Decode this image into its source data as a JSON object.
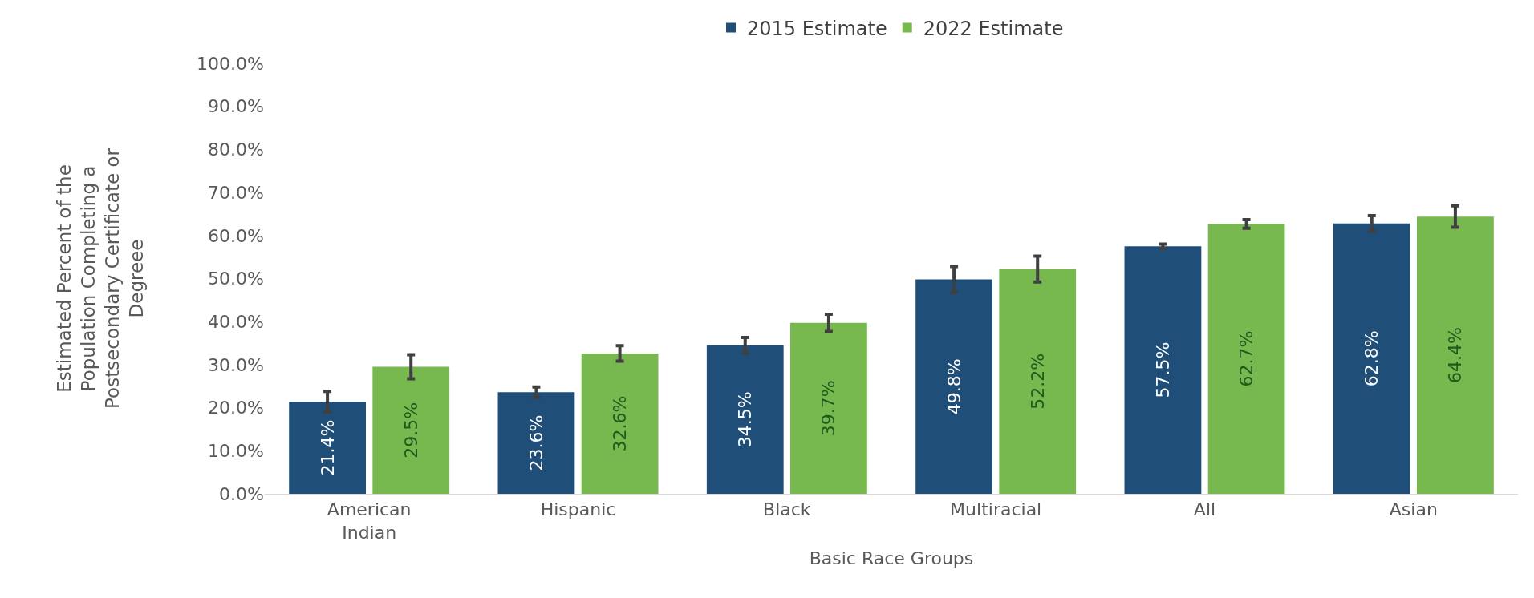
{
  "chart_data": {
    "type": "bar",
    "xlabel": "Basic Race Groups",
    "ylabel": "Estimated Percent of the Population Completing a Postsecondary Certificate or Degreee",
    "categories": [
      "American Indian",
      "Hispanic",
      "Black",
      "Multiracial",
      "All",
      "Asian"
    ],
    "series": [
      {
        "name": "2015 Estimate",
        "color": "#1f4e79",
        "values": [
          21.4,
          23.6,
          34.5,
          49.8,
          57.5,
          62.8
        ],
        "value_labels": [
          "21.4%",
          "23.6%",
          "34.5%",
          "49.8%",
          "57.5%",
          "62.8%"
        ],
        "errors": [
          2.4,
          1.2,
          1.8,
          3.0,
          0.5,
          1.8
        ]
      },
      {
        "name": "2022 Estimate",
        "color": "#77b84f",
        "values": [
          29.5,
          32.6,
          39.7,
          52.2,
          62.7,
          64.4
        ],
        "value_labels": [
          "29.5%",
          "32.6%",
          "39.7%",
          "52.2%",
          "62.7%",
          "64.4%"
        ],
        "errors": [
          2.8,
          1.8,
          2.0,
          3.0,
          1.0,
          2.5
        ]
      }
    ],
    "ylim": [
      0,
      100
    ],
    "yticks": [
      {
        "value": 0,
        "label": "0.0%"
      },
      {
        "value": 10,
        "label": "10.0%"
      },
      {
        "value": 20,
        "label": "20.0%"
      },
      {
        "value": 30,
        "label": "30.0%"
      },
      {
        "value": 40,
        "label": "40.0%"
      },
      {
        "value": 50,
        "label": "50.0%"
      },
      {
        "value": 60,
        "label": "60.0%"
      },
      {
        "value": 70,
        "label": "70.0%"
      },
      {
        "value": 80,
        "label": "80.0%"
      },
      {
        "value": 90,
        "label": "90.0%"
      },
      {
        "value": 100,
        "label": "100.0%"
      }
    ],
    "legend": "top",
    "grid": false
  }
}
